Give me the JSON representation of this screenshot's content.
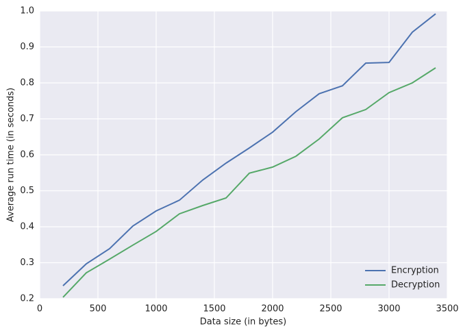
{
  "chart_data": {
    "type": "line",
    "xlabel": "Data size (in bytes)",
    "ylabel": "Average run time (in seconds)",
    "x": [
      200,
      400,
      600,
      800,
      1000,
      1200,
      1400,
      1600,
      1800,
      2000,
      2200,
      2400,
      2600,
      2800,
      3000,
      3200,
      3400
    ],
    "series": [
      {
        "name": "Encryption",
        "color": "#4c72b0",
        "values": [
          0.236,
          0.297,
          0.339,
          0.402,
          0.444,
          0.474,
          0.53,
          0.577,
          0.619,
          0.663,
          0.72,
          0.77,
          0.792,
          0.855,
          0.857,
          0.941,
          0.992
        ]
      },
      {
        "name": "Decryption",
        "color": "#55a868",
        "values": [
          0.204,
          0.272,
          0.31,
          0.349,
          0.387,
          0.436,
          0.459,
          0.48,
          0.549,
          0.566,
          0.596,
          0.644,
          0.703,
          0.726,
          0.773,
          0.8,
          0.842
        ]
      }
    ],
    "xlim": [
      0,
      3500
    ],
    "xticks": [
      0,
      500,
      1000,
      1500,
      2000,
      2500,
      3000,
      3500
    ],
    "ylim": [
      0.2,
      1
    ],
    "yticks": [
      0.2,
      0.3,
      0.4,
      0.5,
      0.6,
      0.7,
      0.8,
      0.9,
      {
        "value": 1,
        "label": "1.0"
      }
    ],
    "grid": true,
    "background": "#eaeaf2",
    "legend": "lower right"
  }
}
